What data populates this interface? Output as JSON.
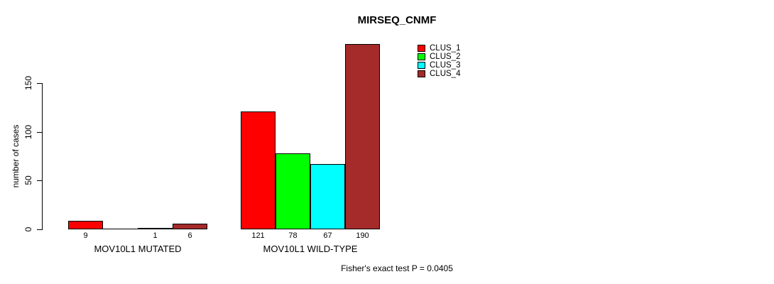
{
  "title": "MIRSEQ_CNMF",
  "footer": "Fisher's exact test P = 0.0405",
  "y_axis": {
    "label": "number of cases",
    "ticks": [
      "0",
      "50",
      "100",
      "150"
    ]
  },
  "legend": {
    "items": [
      {
        "label": "CLUS_1",
        "color": "#ff0000"
      },
      {
        "label": "CLUS_2",
        "color": "#00ff00"
      },
      {
        "label": "CLUS_3",
        "color": "#00ffff"
      },
      {
        "label": "CLUS_4",
        "color": "#a52a2a"
      }
    ]
  },
  "chart_data": {
    "type": "bar",
    "title": "MIRSEQ_CNMF",
    "xlabel": "",
    "ylabel": "number of cases",
    "ylim": [
      0,
      150
    ],
    "yticks": [
      0,
      50,
      100,
      150
    ],
    "grid": false,
    "legend_position": "top-right",
    "categories": [
      "MOV10L1 MUTATED",
      "MOV10L1 WILD-TYPE"
    ],
    "series": [
      {
        "name": "CLUS_1",
        "color": "#ff0000",
        "values": [
          9,
          121
        ]
      },
      {
        "name": "CLUS_2",
        "color": "#00ff00",
        "values": [
          0,
          78
        ]
      },
      {
        "name": "CLUS_3",
        "color": "#00ffff",
        "values": [
          1,
          67
        ]
      },
      {
        "name": "CLUS_4",
        "color": "#a52a2a",
        "values": [
          6,
          190
        ]
      }
    ],
    "bar_value_labels": [
      [
        "9",
        "",
        "1",
        "6"
      ],
      [
        "121",
        "78",
        "67",
        "190"
      ]
    ],
    "annotation": "Fisher's exact test P = 0.0405"
  }
}
